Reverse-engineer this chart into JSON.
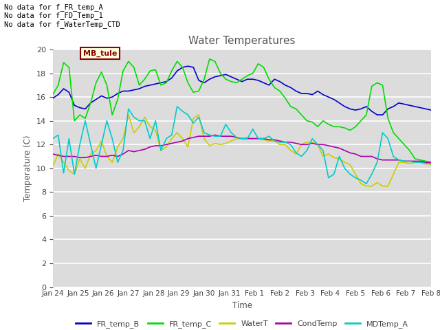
{
  "title": "Water Temperatures",
  "ylabel": "Temperature (C)",
  "xlabel": "Time",
  "ylim": [
    0,
    20
  ],
  "yticks": [
    0,
    2,
    4,
    6,
    8,
    10,
    12,
    14,
    16,
    18,
    20
  ],
  "bg_color": "#dcdcdc",
  "annotations": [
    "No data for f_FR_temp_A",
    "No data for f_FD_Temp_1",
    "No data for f_WaterTemp_CTD"
  ],
  "mb_tule_label": "MB_tule",
  "x_tick_labels": [
    "Jan 24",
    "Jan 25",
    "Jan 26",
    "Jan 27",
    "Jan 28",
    "Jan 29",
    "Jan 30",
    "Jan 31",
    "Feb 1",
    "Feb 2",
    "Feb 3",
    "Feb 4",
    "Feb 5",
    "Feb 6",
    "Feb 7",
    "Feb 8"
  ],
  "FR_temp_B_color": "#0000cc",
  "FR_temp_C_color": "#00dd00",
  "WaterT_color": "#cccc00",
  "CondTemp_color": "#aa00aa",
  "MDTemp_A_color": "#00cccc",
  "FR_temp_B": [
    15.9,
    16.2,
    16.7,
    16.4,
    15.3,
    15.1,
    15.0,
    15.5,
    15.8,
    16.1,
    15.9,
    16.0,
    16.3,
    16.5,
    16.5,
    16.6,
    16.7,
    16.9,
    17.0,
    17.1,
    17.2,
    17.3,
    17.6,
    18.2,
    18.5,
    18.6,
    18.5,
    17.4,
    17.2,
    17.5,
    17.7,
    17.8,
    17.9,
    17.7,
    17.5,
    17.3,
    17.5,
    17.5,
    17.4,
    17.2,
    17.0,
    17.5,
    17.3,
    17.0,
    16.8,
    16.5,
    16.3,
    16.3,
    16.2,
    16.5,
    16.2,
    16.0,
    15.8,
    15.5,
    15.2,
    15.0,
    14.9,
    15.0,
    15.2,
    14.8,
    14.5,
    14.5,
    15.0,
    15.2,
    15.5,
    15.4,
    15.3,
    15.2,
    15.1,
    15.0,
    14.9
  ],
  "FR_temp_C": [
    16.2,
    17.0,
    18.9,
    18.5,
    14.0,
    14.5,
    14.2,
    15.5,
    17.2,
    18.1,
    17.0,
    14.5,
    15.8,
    18.2,
    19.0,
    18.5,
    17.0,
    17.5,
    18.2,
    18.3,
    17.0,
    17.2,
    18.2,
    19.0,
    18.5,
    17.2,
    16.4,
    16.5,
    17.5,
    19.2,
    19.0,
    18.0,
    17.5,
    17.3,
    17.2,
    17.5,
    17.8,
    18.0,
    18.8,
    18.5,
    17.5,
    16.8,
    16.5,
    15.9,
    15.2,
    15.0,
    14.5,
    14.0,
    13.9,
    13.5,
    14.0,
    13.7,
    13.5,
    13.5,
    13.4,
    13.2,
    13.5,
    14.0,
    14.5,
    16.9,
    17.2,
    17.0,
    14.2,
    13.0,
    12.5,
    12.0,
    11.5,
    10.8,
    10.7,
    10.6,
    10.5
  ],
  "WaterT": [
    10.2,
    11.2,
    10.5,
    9.8,
    9.5,
    10.8,
    10.0,
    11.2,
    11.5,
    12.3,
    11.0,
    10.5,
    11.8,
    12.5,
    14.5,
    13.0,
    13.5,
    14.3,
    13.5,
    13.2,
    11.5,
    11.8,
    12.5,
    13.0,
    12.5,
    11.8,
    14.2,
    14.5,
    12.5,
    11.9,
    12.1,
    12.0,
    12.1,
    12.3,
    12.5,
    12.5,
    12.6,
    12.5,
    12.5,
    12.4,
    12.3,
    12.3,
    12.0,
    12.0,
    11.5,
    11.2,
    12.0,
    12.2,
    12.2,
    12.0,
    11.0,
    11.2,
    10.9,
    10.8,
    10.5,
    10.3,
    9.5,
    8.7,
    8.5,
    8.5,
    8.8,
    8.5,
    8.5,
    9.5,
    10.5,
    10.5,
    10.4,
    10.5,
    10.5,
    10.4,
    10.3
  ],
  "CondTemp": [
    11.2,
    11.1,
    11.0,
    11.0,
    11.0,
    10.9,
    10.9,
    11.0,
    11.1,
    11.0,
    11.0,
    11.1,
    11.0,
    11.2,
    11.5,
    11.4,
    11.5,
    11.6,
    11.8,
    11.9,
    11.9,
    12.0,
    12.1,
    12.2,
    12.3,
    12.5,
    12.6,
    12.7,
    12.7,
    12.7,
    12.8,
    12.7,
    12.7,
    12.7,
    12.6,
    12.5,
    12.5,
    12.5,
    12.5,
    12.5,
    12.4,
    12.4,
    12.3,
    12.2,
    12.2,
    12.1,
    12.0,
    12.0,
    12.1,
    12.0,
    12.0,
    11.9,
    11.8,
    11.7,
    11.5,
    11.3,
    11.2,
    11.0,
    11.0,
    11.0,
    10.8,
    10.7,
    10.7,
    10.7,
    10.7,
    10.6,
    10.6,
    10.6,
    10.6,
    10.5,
    10.5
  ],
  "MDTemp_A": [
    12.5,
    12.8,
    9.6,
    12.5,
    9.5,
    12.0,
    14.0,
    12.0,
    10.0,
    12.0,
    14.0,
    12.5,
    10.5,
    11.5,
    15.0,
    14.3,
    14.0,
    14.0,
    12.5,
    14.0,
    11.5,
    12.5,
    12.8,
    15.2,
    14.8,
    14.5,
    13.8,
    14.3,
    13.0,
    12.8,
    12.7,
    12.7,
    13.7,
    13.0,
    12.6,
    12.5,
    12.5,
    13.3,
    12.5,
    12.5,
    12.7,
    12.3,
    12.2,
    12.2,
    12.0,
    11.3,
    11.0,
    11.5,
    12.5,
    12.0,
    11.5,
    9.2,
    9.5,
    11.0,
    10.0,
    9.5,
    9.2,
    9.0,
    8.7,
    9.5,
    10.5,
    13.0,
    12.5,
    11.0,
    10.7,
    10.6,
    10.6,
    10.5,
    10.5,
    10.4,
    10.4
  ]
}
